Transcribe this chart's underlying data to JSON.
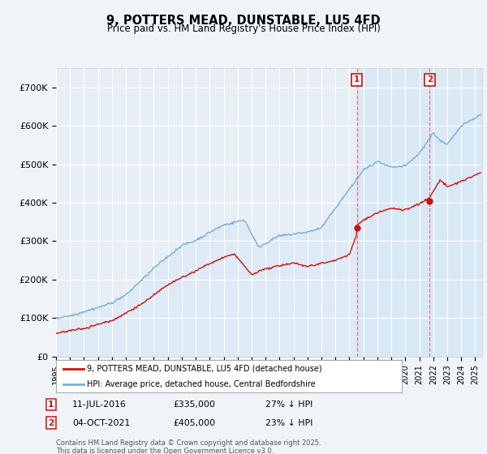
{
  "title": "9, POTTERS MEAD, DUNSTABLE, LU5 4FD",
  "subtitle": "Price paid vs. HM Land Registry's House Price Index (HPI)",
  "ylabel_ticks": [
    "£0",
    "£100K",
    "£200K",
    "£300K",
    "£400K",
    "£500K",
    "£600K",
    "£700K"
  ],
  "ytick_vals": [
    0,
    100000,
    200000,
    300000,
    400000,
    500000,
    600000,
    700000
  ],
  "ylim": [
    0,
    750000
  ],
  "xlim_start": 1995.0,
  "xlim_end": 2025.5,
  "hpi_color": "#7bafd4",
  "hpi_fill_color": "#d6e8f5",
  "price_color": "#cc1111",
  "dashed_color": "#ee6666",
  "bg_color": "#f0f4f8",
  "plot_bg": "#e8eef5",
  "legend_label_price": "9, POTTERS MEAD, DUNSTABLE, LU5 4FD (detached house)",
  "legend_label_hpi": "HPI: Average price, detached house, Central Bedfordshire",
  "transaction1_date": "11-JUL-2016",
  "transaction1_price": "£335,000",
  "transaction1_hpi": "27% ↓ HPI",
  "transaction1_x": 2016.53,
  "transaction1_y": 335000,
  "transaction2_date": "04-OCT-2021",
  "transaction2_price": "£405,000",
  "transaction2_hpi": "23% ↓ HPI",
  "transaction2_x": 2021.75,
  "transaction2_y": 405000,
  "footer": "Contains HM Land Registry data © Crown copyright and database right 2025.\nThis data is licensed under the Open Government Licence v3.0.",
  "xtick_years": [
    1995,
    1996,
    1997,
    1998,
    1999,
    2000,
    2001,
    2002,
    2003,
    2004,
    2005,
    2006,
    2007,
    2008,
    2009,
    2010,
    2011,
    2012,
    2013,
    2014,
    2015,
    2016,
    2017,
    2018,
    2019,
    2020,
    2021,
    2022,
    2023,
    2024,
    2025
  ]
}
